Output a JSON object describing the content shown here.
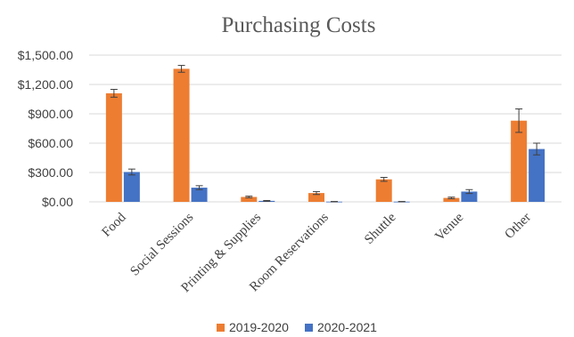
{
  "chart_data": {
    "type": "bar",
    "title": "Purchasing Costs",
    "xlabel": "",
    "ylabel": "",
    "ylim": [
      0,
      1500
    ],
    "yticks": [
      "$0.00",
      "$300.00",
      "$600.00",
      "$900.00",
      "$1,200.00",
      "$1,500.00"
    ],
    "ytick_values": [
      0,
      300,
      600,
      900,
      1200,
      1500
    ],
    "grid": true,
    "legend": "bottom",
    "categories": [
      "Food",
      "Social Sessions",
      "Printing & Supplies",
      "Room Reservations",
      "Shuttle",
      "Venue",
      "Other"
    ],
    "series": [
      {
        "name": "2019-2020",
        "color": "#ed7d31",
        "values": [
          1110,
          1360,
          50,
          90,
          230,
          40,
          830
        ],
        "errors": [
          40,
          35,
          8,
          15,
          20,
          8,
          120
        ]
      },
      {
        "name": "2020-2021",
        "color": "#4472c4",
        "values": [
          305,
          145,
          10,
          2,
          2,
          105,
          540
        ],
        "errors": [
          30,
          20,
          4,
          2,
          2,
          20,
          60
        ]
      }
    ]
  }
}
